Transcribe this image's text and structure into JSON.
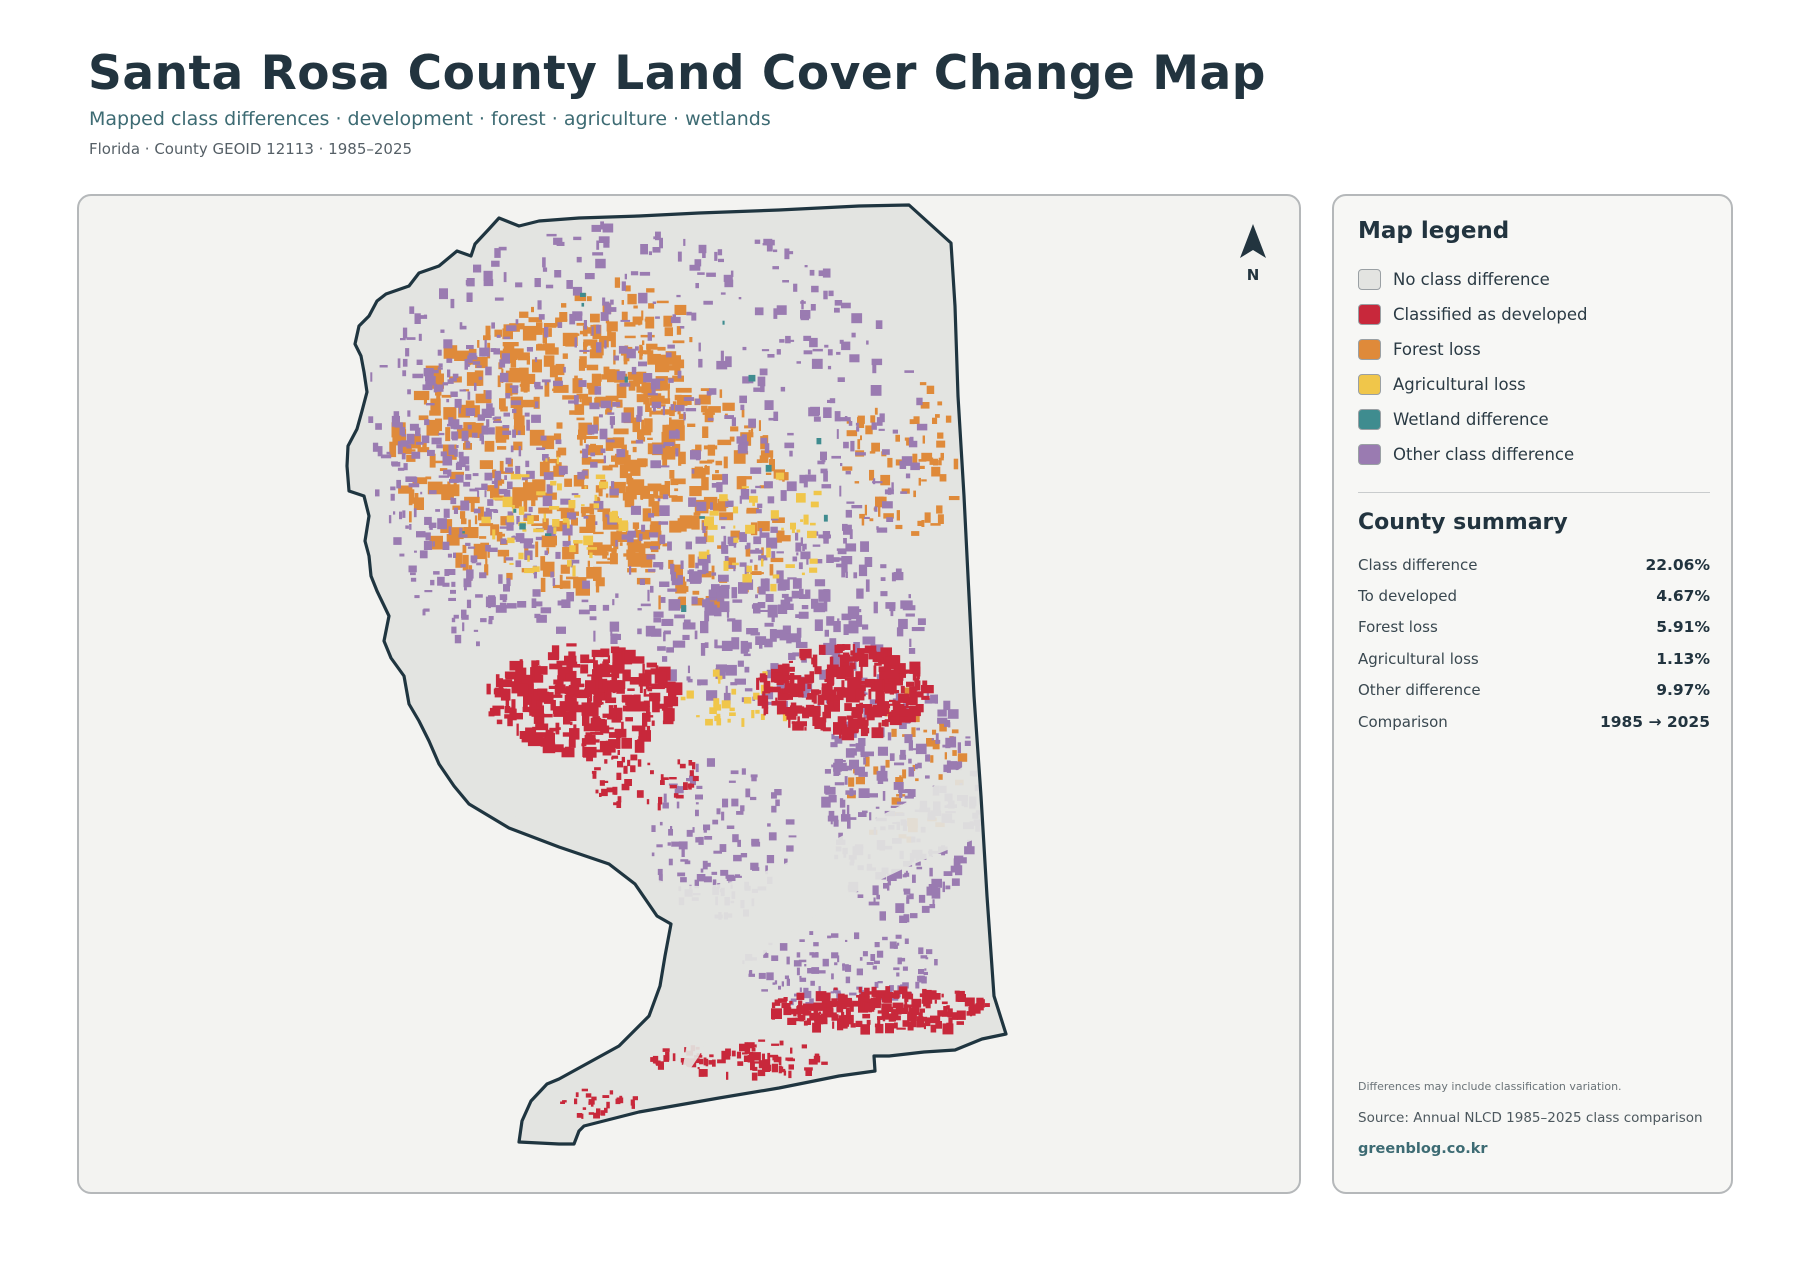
{
  "header": {
    "title": "Santa Rosa County Land Cover Change Map",
    "subtitle": "Mapped class differences · development · forest · agriculture · wetlands",
    "meta": "Florida · County GEOID 12113 · 1985–2025"
  },
  "map": {
    "north_label": "N",
    "colors": {
      "land": "#e3e4e1",
      "outline": "#1f3540",
      "developed": "#c8283b",
      "forest_loss": "#df8a3a",
      "agricultural_loss": "#f0c64a",
      "wetland": "#3f8c8f",
      "other": "#9a7bb1"
    }
  },
  "legend": {
    "title": "Map legend",
    "items": [
      {
        "label": "No class difference",
        "color": "#e3e4e1",
        "icon": "swatch-no-difference"
      },
      {
        "label": "Classified as developed",
        "color": "#c8283b",
        "icon": "swatch-developed"
      },
      {
        "label": "Forest loss",
        "color": "#df8a3a",
        "icon": "swatch-forest-loss"
      },
      {
        "label": "Agricultural loss",
        "color": "#f0c64a",
        "icon": "swatch-agricultural-loss"
      },
      {
        "label": "Wetland difference",
        "color": "#3f8c8f",
        "icon": "swatch-wetland"
      },
      {
        "label": "Other class difference",
        "color": "#9a7bb1",
        "icon": "swatch-other"
      }
    ]
  },
  "summary": {
    "title": "County summary",
    "rows": [
      {
        "label": "Class difference",
        "value": "22.06%"
      },
      {
        "label": "To developed",
        "value": "4.67%"
      },
      {
        "label": "Forest loss",
        "value": "5.91%"
      },
      {
        "label": "Agricultural loss",
        "value": "1.13%"
      },
      {
        "label": "Other difference",
        "value": "9.97%"
      },
      {
        "label": "Comparison",
        "value": "1985 → 2025"
      }
    ]
  },
  "footer": {
    "note": "Differences may include classification variation.",
    "source": "Source: Annual NLCD 1985–2025 class comparison",
    "brand": "greenblog.co.kr"
  }
}
